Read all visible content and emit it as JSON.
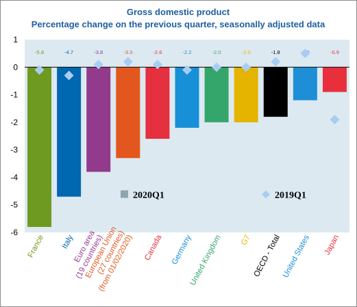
{
  "chart_data": {
    "type": "bar",
    "title": "Gross domestic product",
    "subtitle": "Percentage change on the previous quarter, seasonally adjusted data",
    "categories": [
      [
        "France"
      ],
      [
        "Italy"
      ],
      [
        "Euro area",
        "(19 countries)"
      ],
      [
        "European Union",
        "(27 countries)",
        "(from 01/02/2020)"
      ],
      [
        "Canada"
      ],
      [
        "Germany"
      ],
      [
        "United Kingdom"
      ],
      [
        "G7"
      ],
      [
        "OECD - Total"
      ],
      [
        "United States"
      ],
      [
        "Japan"
      ]
    ],
    "series": [
      {
        "name": "2020Q1",
        "type": "bar",
        "values": [
          -5.8,
          -4.7,
          -3.8,
          -3.3,
          -2.6,
          -2.2,
          -2.0,
          -2.0,
          -1.8,
          -1.2,
          -0.9
        ],
        "value_labels": [
          "-5.8",
          "-4.7",
          "-3.8",
          "-3.3",
          "-2.6",
          "-2.2",
          "-2.0",
          "-2.0",
          "-1.8",
          "-1.2",
          "-0.9"
        ],
        "legend_color": "#8ea4ae"
      },
      {
        "name": "2019Q1",
        "type": "scatter",
        "marker": "diamond",
        "values": [
          -0.1,
          -0.3,
          0.1,
          0.2,
          0.1,
          -0.1,
          0.0,
          0.0,
          0.2,
          0.5,
          -1.9
        ],
        "color": "#a9cdf2"
      }
    ],
    "category_colors": [
      "#6f9a22",
      "#0067b1",
      "#923b8c",
      "#e2571e",
      "#e5303f",
      "#1790d7",
      "#35a66b",
      "#e4b400",
      "#000000",
      "#1e8fd6",
      "#e8303d"
    ],
    "ylim": [
      -6,
      1
    ],
    "yticks": [
      "1",
      "0",
      "-1",
      "-2",
      "-3",
      "-4",
      "-5",
      "-6"
    ],
    "ytick_values": [
      1,
      0,
      -1,
      -2,
      -3,
      -4,
      -5,
      -6
    ],
    "grid": false,
    "plot_background": "#dde9f0",
    "legend": "inside-bottom",
    "title_color": "#1f5fa0"
  }
}
